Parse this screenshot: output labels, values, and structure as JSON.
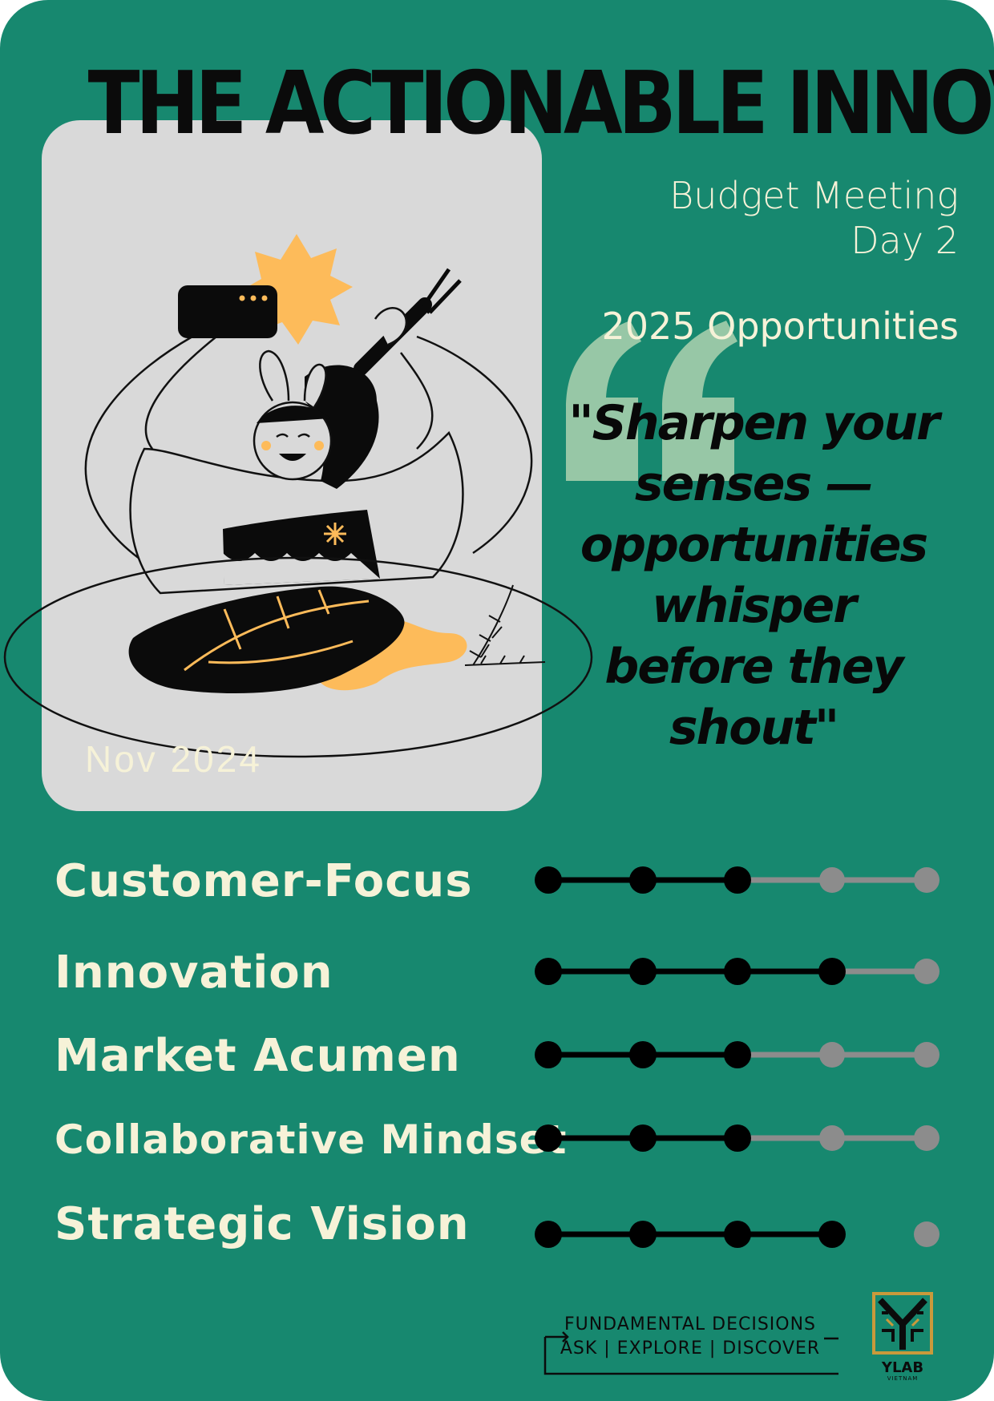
{
  "title": "THE ACTIONABLE INNOVATOR",
  "meeting": {
    "line1": "Budget Meeting",
    "line2": "Day 2"
  },
  "opportunities": "2025 Opportunities",
  "quote": "\"Sharpen your senses — opportunities whisper before they shout\"",
  "date": "Nov 2024",
  "colors": {
    "background": "#17886f",
    "panel": "#d9d9d9",
    "accent": "#fdbb5a",
    "quote_mark": "#97c7a6",
    "text_light": "#f6f2d8",
    "dot_filled": "#000000",
    "dot_empty": "#8c8c8c"
  },
  "skills": [
    {
      "label": "Customer-Focus",
      "rating": 3,
      "max": 5
    },
    {
      "label": "Innovation",
      "rating": 4,
      "max": 5
    },
    {
      "label": "Market Acumen",
      "rating": 3,
      "max": 5
    },
    {
      "label": "Collaborative Mindset",
      "rating": 3,
      "max": 5
    },
    {
      "label": "Strategic Vision",
      "rating": 4,
      "max": 5
    }
  ],
  "footer": {
    "line1": "FUNDAMENTAL DECISIONS",
    "line2": "ASK | EXPLORE | DISCOVER"
  },
  "logo": {
    "name": "YLAB",
    "sub": "VIETNAM"
  }
}
